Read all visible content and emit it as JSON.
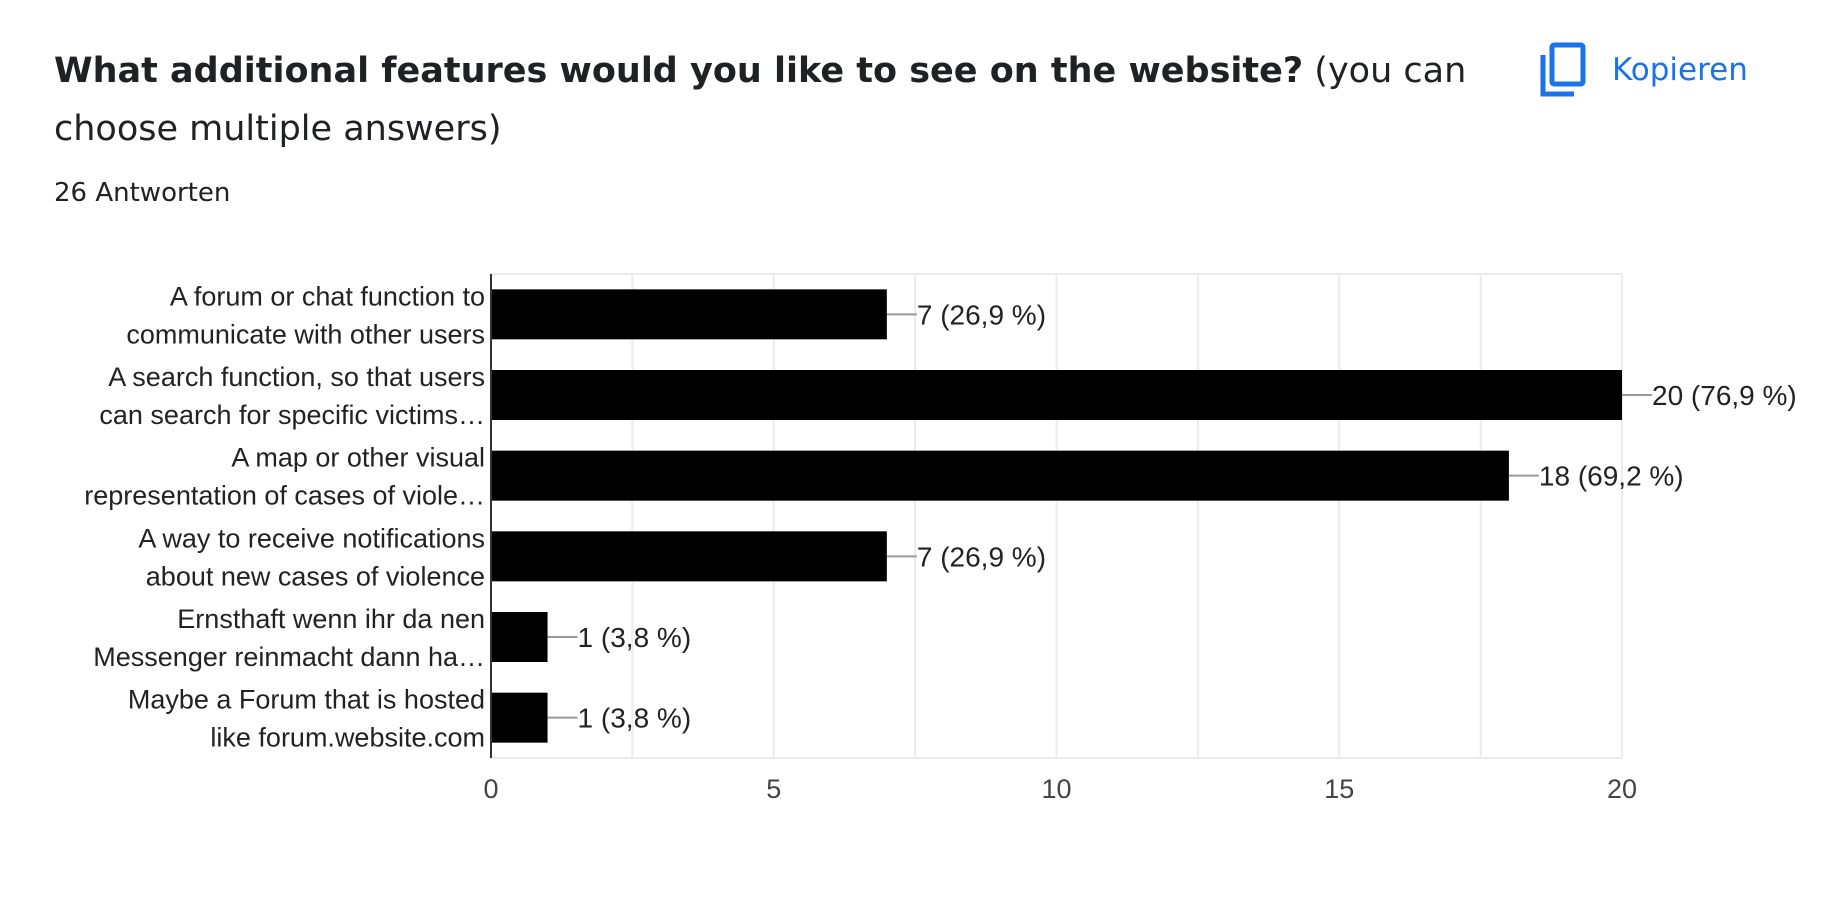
{
  "header": {
    "title_bold": "What additional features would you like to see on the website?",
    "title_rest": " (you can choose multiple answers)",
    "responses": "26 Antworten",
    "copy_label": "Kopieren",
    "copy_icon": "copy-icon"
  },
  "colors": {
    "bar": "#000000",
    "accent": "#1a73e8",
    "grid": "#ebebeb",
    "text": "#202124"
  },
  "chart_data": {
    "type": "bar",
    "orientation": "horizontal",
    "categories": [
      [
        "A forum or chat function to",
        "communicate with other users"
      ],
      [
        "A search function, so that users",
        "can search for specific victims…"
      ],
      [
        "A map or other visual",
        "representation of cases of viole…"
      ],
      [
        "A way to receive notifications",
        "about new cases of violence"
      ],
      [
        "Ernsthaft wenn ihr da nen",
        "Messenger reinmacht dann ha…"
      ],
      [
        "Maybe a Forum that is hosted",
        "like forum.website.com"
      ]
    ],
    "values": [
      7,
      20,
      18,
      7,
      1,
      1
    ],
    "data_labels": [
      "7 (26,9 %)",
      "20 (76,9 %)",
      "18 (69,2 %)",
      "7 (26,9 %)",
      "1 (3,8 %)",
      "1 (3,8 %)"
    ],
    "xlim": [
      0,
      20
    ],
    "xticks": [
      0,
      5,
      10,
      15,
      20
    ],
    "grid": true
  }
}
